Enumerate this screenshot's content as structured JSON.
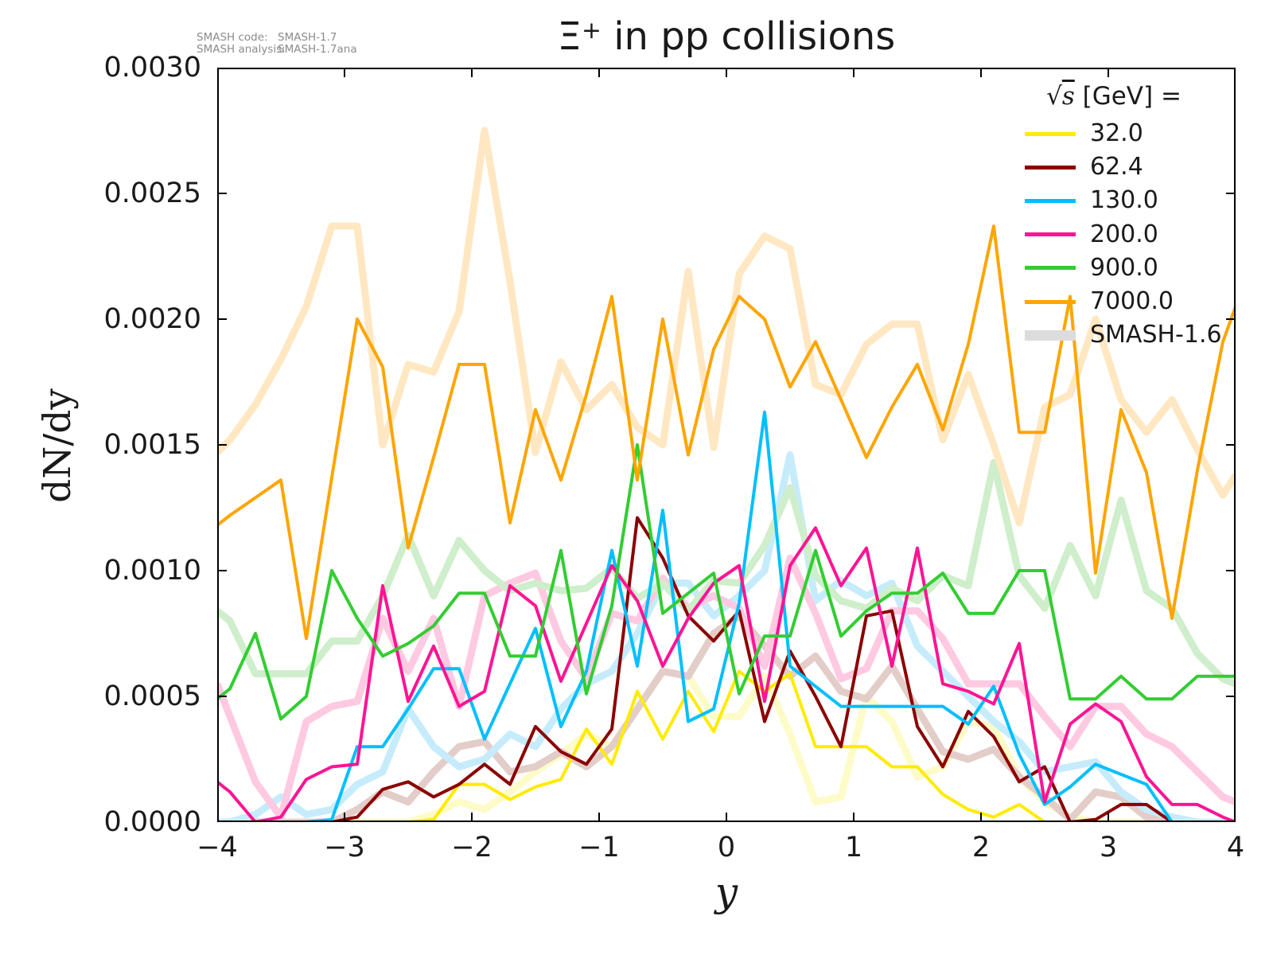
{
  "meta": {
    "code_label": "SMASH code:",
    "code_value": "SMASH-1.7",
    "analysis_label": "SMASH analysis:",
    "analysis_value": "SMASH-1.7ana"
  },
  "title": {
    "particle": "Ξ",
    "superscript": "+",
    "rest": " in pp collisions"
  },
  "axes": {
    "xlabel": "y",
    "ylabel": "dN/dy",
    "xticks": [
      "−4",
      "−3",
      "−2",
      "−1",
      "0",
      "1",
      "2",
      "3",
      "4"
    ],
    "yticks": [
      "0.0030",
      "0.0025",
      "0.0020",
      "0.0015",
      "0.0010",
      "0.0005",
      "0.0000"
    ]
  },
  "legend": {
    "radical": "√",
    "radicand": "s",
    "title_rest": "  [GeV] =",
    "entries": [
      {
        "label": "32.0",
        "color": "#ffeb00",
        "lw": 5
      },
      {
        "label": "62.4",
        "color": "#8b0000",
        "lw": 5
      },
      {
        "label": "130.0",
        "color": "#00bfff",
        "lw": 5
      },
      {
        "label": "200.0",
        "color": "#ff1493",
        "lw": 5
      },
      {
        "label": "900.0",
        "color": "#32cd32",
        "lw": 5
      },
      {
        "label": "7000.0",
        "color": "#ffa500",
        "lw": 5
      },
      {
        "label": "SMASH-1.6",
        "color": "#dcdcdc",
        "lw": 13
      }
    ]
  },
  "chart_data": {
    "type": "line",
    "title": "Ξ⁺ in pp collisions",
    "xlabel": "y",
    "ylabel": "dN/dy",
    "xlim": [
      -4,
      4
    ],
    "ylim": [
      0,
      0.003
    ],
    "grid": false,
    "legend_position": "upper right",
    "xtick_values": [
      -4,
      -3,
      -2,
      -1,
      0,
      1,
      2,
      3,
      4
    ],
    "ytick_values": [
      0.003,
      0.0025,
      0.002,
      0.0015,
      0.001,
      0.0005,
      0
    ],
    "x": [
      -4,
      -3.9,
      -3.7,
      -3.5,
      -3.3,
      -3.1,
      -2.9,
      -2.7,
      -2.5,
      -2.3,
      -2.1,
      -1.9,
      -1.7,
      -1.5,
      -1.3,
      -1.1,
      -0.9,
      -0.7,
      -0.5,
      -0.3,
      -0.1,
      0.1,
      0.3,
      0.5,
      0.7,
      0.9,
      1.1,
      1.3,
      1.5,
      1.7,
      1.9,
      2.1,
      2.3,
      2.5,
      2.7,
      2.9,
      3.1,
      3.3,
      3.5,
      3.7,
      3.9,
      4
    ],
    "series": [
      {
        "name": "smash16-32.0",
        "energy": "32.0",
        "version": "SMASH-1.6",
        "color": "#fdfbc8",
        "width": 9,
        "values": [
          0,
          0,
          0,
          0,
          0,
          0,
          0,
          0,
          0,
          3e-05,
          8e-05,
          5e-05,
          0.00012,
          0.0002,
          0.00027,
          0.00035,
          0.0003,
          0.00045,
          0.0006,
          0.00058,
          0.00042,
          0.00042,
          0.00058,
          0.00035,
          8e-05,
          0.0001,
          0.0005,
          0.0004,
          0.00018,
          0.00022,
          0.0004,
          0.00038,
          0.00018,
          8e-05,
          2e-05,
          0,
          0,
          0,
          0,
          0,
          0,
          0
        ]
      },
      {
        "name": "smash16-62.4",
        "energy": "62.4",
        "version": "SMASH-1.6",
        "color": "#e3cdc9",
        "width": 9,
        "values": [
          0,
          0,
          0,
          0,
          0,
          0,
          5e-05,
          0.00012,
          8e-05,
          0.0002,
          0.0003,
          0.00032,
          0.0002,
          0.00022,
          0.00028,
          0.00022,
          0.0003,
          0.00045,
          0.0006,
          0.00058,
          0.00075,
          0.00082,
          0.0007,
          0.00058,
          0.00066,
          0.00052,
          0.00049,
          0.00062,
          0.00045,
          0.00028,
          0.00025,
          0.00029,
          0.00018,
          0.0001,
          1e-05,
          0.00012,
          0.0001,
          2e-05,
          0,
          0,
          0,
          0
        ]
      },
      {
        "name": "smash16-130.0",
        "energy": "130.0",
        "version": "SMASH-1.6",
        "color": "#c6ecfc",
        "width": 9,
        "values": [
          0,
          0,
          3e-05,
          0.0001,
          3e-05,
          5e-05,
          0.00015,
          0.0002,
          0.00045,
          0.0003,
          0.00022,
          0.00025,
          0.00035,
          0.0003,
          0.00045,
          0.00055,
          0.0006,
          0.00075,
          0.00095,
          0.00095,
          0.00082,
          0.0009,
          0.001,
          0.00146,
          0.00088,
          0.00096,
          0.0009,
          0.00095,
          0.0007,
          0.0006,
          0.0005,
          0.0004,
          0.00032,
          0.0002,
          0.00022,
          0.00024,
          0.00012,
          5e-05,
          2e-05,
          0,
          0,
          0
        ]
      },
      {
        "name": "smash16-200.0",
        "energy": "200.0",
        "version": "SMASH-1.6",
        "color": "#ffc9e2",
        "width": 9,
        "values": [
          0.00055,
          0.00042,
          0.00016,
          2e-05,
          0.0004,
          0.00046,
          0.00048,
          0.00081,
          0.0006,
          0.00081,
          0.00046,
          0.0009,
          0.00095,
          0.00099,
          0.00072,
          0.00057,
          0.00083,
          0.0008,
          0.00097,
          0.00085,
          0.0009,
          0.00085,
          0.00062,
          0.00105,
          0.00083,
          0.00057,
          0.00061,
          0.00084,
          0.00084,
          0.00073,
          0.00055,
          0.00055,
          0.00055,
          0.00042,
          0.0003,
          0.00046,
          0.00046,
          0.00035,
          0.0003,
          0.0002,
          0.0001,
          8e-05
        ]
      },
      {
        "name": "smash16-900.0",
        "energy": "900.0",
        "version": "SMASH-1.6",
        "color": "#cfeecb",
        "width": 9,
        "values": [
          0.00084,
          0.0008,
          0.00059,
          0.00059,
          0.00059,
          0.00072,
          0.00072,
          0.0009,
          0.00114,
          0.0009,
          0.00112,
          0.001,
          0.00092,
          0.00095,
          0.00092,
          0.00093,
          0.00101,
          0.00089,
          0.00095,
          0.00084,
          0.00096,
          0.00095,
          0.0011,
          0.00133,
          0.00098,
          0.00088,
          0.00085,
          0.00093,
          0.00088,
          0.00098,
          0.00094,
          0.00143,
          0.00098,
          0.00085,
          0.0011,
          0.0009,
          0.00128,
          0.00092,
          0.00085,
          0.00067,
          0.00057,
          0.00055
        ]
      },
      {
        "name": "smash16-7000.0",
        "energy": "7000.0",
        "version": "SMASH-1.6",
        "color": "#ffe7c2",
        "width": 9,
        "values": [
          0.00147,
          0.00152,
          0.00166,
          0.00184,
          0.00205,
          0.00237,
          0.00237,
          0.0015,
          0.00182,
          0.00179,
          0.00203,
          0.00275,
          0.00215,
          0.00147,
          0.00183,
          0.00164,
          0.00174,
          0.00157,
          0.0015,
          0.00219,
          0.00149,
          0.00218,
          0.00233,
          0.00228,
          0.00174,
          0.0017,
          0.0019,
          0.00198,
          0.00198,
          0.00152,
          0.00178,
          0.0015,
          0.00119,
          0.00165,
          0.0017,
          0.002,
          0.00168,
          0.00155,
          0.00168,
          0.00148,
          0.0013,
          0.00138
        ]
      },
      {
        "name": "solid-32.0",
        "energy": "32.0",
        "version": "SMASH-1.7",
        "color": "#ffeb00",
        "width": 4,
        "values": [
          0,
          0,
          0,
          0,
          0,
          0,
          0,
          0,
          0,
          1e-05,
          0.00015,
          0.00015,
          9e-05,
          0.00014,
          0.00017,
          0.00037,
          0.00023,
          0.00052,
          0.00033,
          0.00052,
          0.00036,
          0.0006,
          0.00052,
          0.00059,
          0.0003,
          0.0003,
          0.0003,
          0.00022,
          0.00022,
          0.00011,
          5e-05,
          2e-05,
          7e-05,
          0,
          0,
          0,
          0,
          0,
          0,
          0,
          0,
          0
        ]
      },
      {
        "name": "solid-62.4",
        "energy": "62.4",
        "version": "SMASH-1.7",
        "color": "#8b0000",
        "width": 4,
        "values": [
          0,
          0,
          0,
          0,
          0,
          0,
          2e-05,
          0.00013,
          0.00016,
          0.0001,
          0.00015,
          0.00023,
          0.00015,
          0.00038,
          0.00028,
          0.00023,
          0.00037,
          0.00121,
          0.00105,
          0.00082,
          0.00072,
          0.00084,
          0.0004,
          0.00068,
          0.0005,
          0.0003,
          0.00082,
          0.00084,
          0.00038,
          0.00022,
          0.00044,
          0.00034,
          0.00016,
          0.00022,
          0,
          1e-05,
          7e-05,
          7e-05,
          0,
          0,
          0,
          0
        ]
      },
      {
        "name": "solid-130.0",
        "energy": "130.0",
        "version": "SMASH-1.7",
        "color": "#00bfff",
        "width": 4,
        "values": [
          0,
          0,
          0,
          0,
          0,
          1e-05,
          0.0003,
          0.0003,
          0.00045,
          0.00061,
          0.00061,
          0.00033,
          0.00055,
          0.00077,
          0.00038,
          0.0006,
          0.00108,
          0.00062,
          0.00124,
          0.0004,
          0.00045,
          0.00087,
          0.00163,
          0.00062,
          0.00054,
          0.00046,
          0.00046,
          0.00046,
          0.00046,
          0.00046,
          0.00039,
          0.00054,
          0.00027,
          7e-05,
          0.00014,
          0.00023,
          0.00019,
          0.00015,
          0,
          0,
          0,
          0
        ]
      },
      {
        "name": "solid-200.0",
        "energy": "200.0",
        "version": "SMASH-1.7",
        "color": "#ff1493",
        "width": 4,
        "values": [
          0.00016,
          0.00012,
          0,
          2e-05,
          0.00017,
          0.00022,
          0.00023,
          0.00094,
          0.00048,
          0.0007,
          0.00046,
          0.00052,
          0.00094,
          0.00086,
          0.00056,
          0.00079,
          0.00102,
          0.00088,
          0.00062,
          0.00081,
          0.00095,
          0.00102,
          0.00048,
          0.00102,
          0.00117,
          0.00094,
          0.00109,
          0.00062,
          0.00109,
          0.00055,
          0.00052,
          0.00047,
          0.00071,
          8e-05,
          0.00039,
          0.00047,
          0.0004,
          0.00018,
          7e-05,
          7e-05,
          2e-05,
          0
        ]
      },
      {
        "name": "solid-900.0",
        "energy": "900.0",
        "version": "SMASH-1.7",
        "color": "#32cd32",
        "width": 4,
        "values": [
          0.00049,
          0.00053,
          0.00075,
          0.00041,
          0.0005,
          0.001,
          0.00081,
          0.00066,
          0.00071,
          0.00078,
          0.00091,
          0.00091,
          0.00066,
          0.00066,
          0.00108,
          0.00051,
          0.00086,
          0.0015,
          0.00083,
          0.00091,
          0.00099,
          0.00051,
          0.00074,
          0.00074,
          0.00108,
          0.00074,
          0.00084,
          0.00091,
          0.00091,
          0.00099,
          0.00083,
          0.00083,
          0.001,
          0.001,
          0.00049,
          0.00049,
          0.00058,
          0.00049,
          0.00049,
          0.00058,
          0.00058,
          0.00058
        ]
      },
      {
        "name": "solid-7000.0",
        "energy": "7000.0",
        "version": "SMASH-1.7",
        "color": "#ffa500",
        "width": 4,
        "values": [
          0.00118,
          0.00122,
          0.00129,
          0.00136,
          0.00073,
          0.00137,
          0.002,
          0.00181,
          0.00109,
          0.00145,
          0.00182,
          0.00182,
          0.00119,
          0.00164,
          0.00136,
          0.0017,
          0.00209,
          0.00136,
          0.002,
          0.00146,
          0.00188,
          0.00209,
          0.002,
          0.00173,
          0.00191,
          0.00168,
          0.00145,
          0.00165,
          0.00182,
          0.00156,
          0.0019,
          0.00237,
          0.00155,
          0.00155,
          0.00209,
          0.00099,
          0.00164,
          0.00139,
          0.00081,
          0.0014,
          0.00191,
          0.00205
        ]
      }
    ]
  }
}
